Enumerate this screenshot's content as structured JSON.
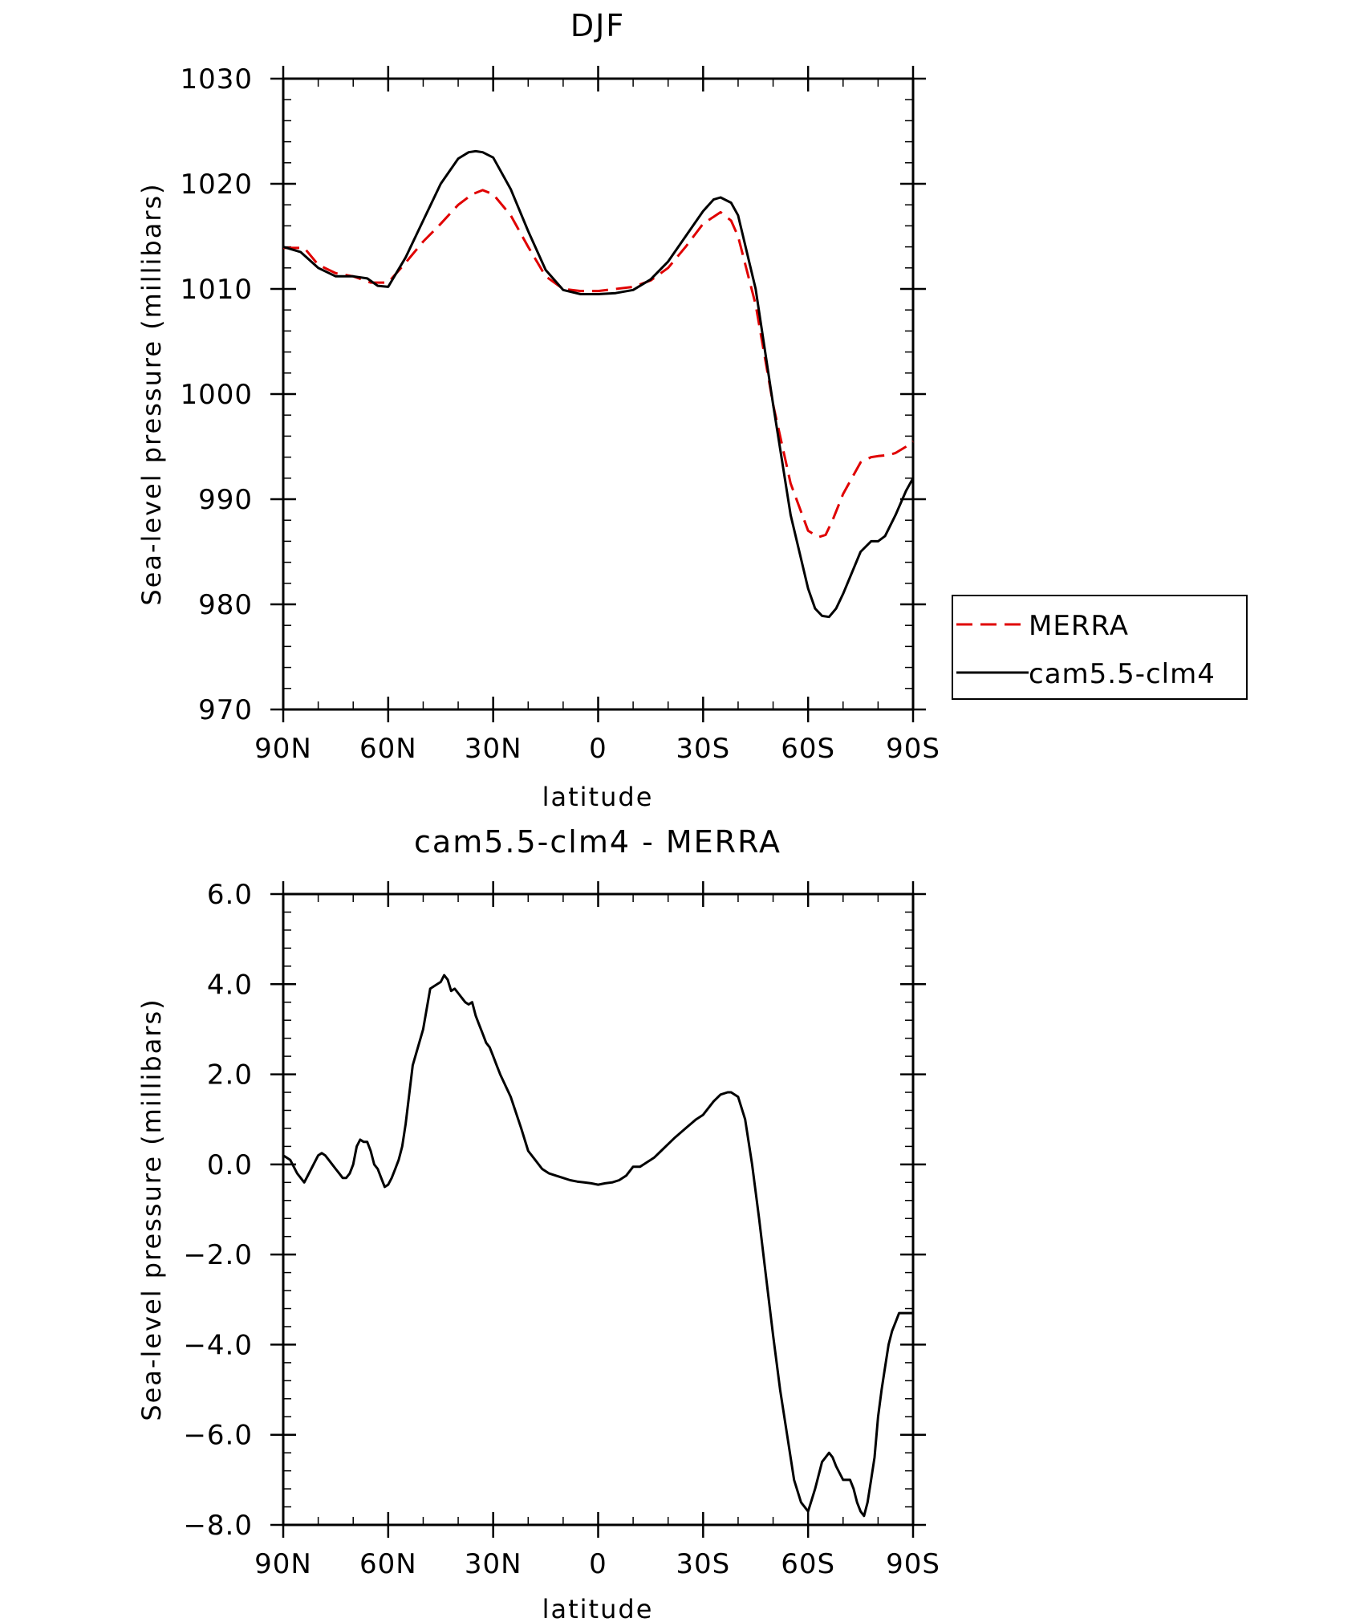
{
  "chart_data": [
    {
      "type": "line",
      "title": "DJF",
      "xlabel": "latitude",
      "ylabel": "Sea-level pressure (millibars)",
      "xlim": [
        90,
        -90
      ],
      "ylim": [
        970,
        1030
      ],
      "x_tick_values": [
        90,
        60,
        30,
        0,
        -30,
        -60,
        -90
      ],
      "x_tick_labels": [
        "90N",
        "60N",
        "30N",
        "0",
        "30S",
        "60S",
        "90S"
      ],
      "y_tick_values": [
        970,
        980,
        990,
        1000,
        1010,
        1020,
        1030
      ],
      "y_tick_labels": [
        "970",
        "980",
        "990",
        "1000",
        "1010",
        "1020",
        "1030"
      ],
      "legend_position": "right",
      "series": [
        {
          "name": "MERRA",
          "color": "#e00000",
          "dash": true,
          "x": [
            90,
            84,
            80,
            75,
            70,
            65,
            60,
            55,
            50,
            45,
            40,
            36,
            33,
            30,
            25,
            20,
            15,
            10,
            5,
            0,
            -5,
            -10,
            -15,
            -20,
            -25,
            -30,
            -35,
            -38,
            -40,
            -45,
            -50,
            -55,
            -60,
            -63,
            -65,
            -67,
            -70,
            -75,
            -78,
            -80,
            -83,
            -85,
            -88,
            -90
          ],
          "y": [
            1013.9,
            1013.9,
            1012.3,
            1011.5,
            1011.2,
            1010.6,
            1010.6,
            1012.5,
            1014.5,
            1016.2,
            1018.0,
            1019.0,
            1019.4,
            1019.0,
            1017.0,
            1014.0,
            1011.2,
            1010.0,
            1009.8,
            1009.8,
            1010.0,
            1010.2,
            1010.8,
            1012.0,
            1014.0,
            1016.2,
            1017.3,
            1016.5,
            1015.0,
            1008.5,
            999.0,
            991.5,
            987.0,
            986.4,
            986.6,
            988.0,
            990.5,
            993.5,
            994.0,
            994.1,
            994.2,
            994.4,
            995.0,
            995.5
          ]
        },
        {
          "name": "cam5.5-clm4",
          "color": "#000000",
          "dash": false,
          "x": [
            90,
            85,
            80,
            75,
            70,
            66,
            63,
            60,
            55,
            50,
            45,
            40,
            37,
            35,
            33,
            30,
            25,
            20,
            15,
            10,
            5,
            0,
            -5,
            -10,
            -15,
            -20,
            -25,
            -30,
            -33,
            -35,
            -38,
            -40,
            -45,
            -50,
            -55,
            -60,
            -62,
            -64,
            -66,
            -68,
            -70,
            -75,
            -78,
            -80,
            -82,
            -85,
            -88,
            -90
          ],
          "y": [
            1014.0,
            1013.5,
            1012.0,
            1011.2,
            1011.2,
            1011.0,
            1010.3,
            1010.2,
            1013.0,
            1016.5,
            1020.0,
            1022.4,
            1023.0,
            1023.1,
            1023.0,
            1022.5,
            1019.5,
            1015.5,
            1011.8,
            1009.9,
            1009.5,
            1009.5,
            1009.6,
            1009.9,
            1010.9,
            1012.6,
            1015.0,
            1017.4,
            1018.5,
            1018.7,
            1018.2,
            1017.0,
            1010.0,
            999.0,
            988.5,
            981.5,
            979.6,
            978.9,
            978.8,
            979.6,
            981.0,
            985.0,
            986.0,
            986.0,
            986.5,
            988.5,
            990.8,
            992.0
          ]
        }
      ]
    },
    {
      "type": "line",
      "title": "cam5.5-clm4 - MERRA",
      "xlabel": "latitude",
      "ylabel": "Sea-level pressure (millibars)",
      "xlim": [
        90,
        -90
      ],
      "ylim": [
        -8.0,
        6.0
      ],
      "x_tick_values": [
        90,
        60,
        30,
        0,
        -30,
        -60,
        -90
      ],
      "x_tick_labels": [
        "90N",
        "60N",
        "30N",
        "0",
        "30S",
        "60S",
        "90S"
      ],
      "y_tick_values": [
        -8,
        -6,
        -4,
        -2,
        0,
        2,
        4,
        6
      ],
      "y_tick_labels": [
        "-8.0",
        "-6.0",
        "-4.0",
        "-2.0",
        "0.0",
        "2.0",
        "4.0",
        "6.0"
      ],
      "series": [
        {
          "color": "#000000",
          "dash": false,
          "x": [
            90,
            88,
            86,
            84,
            82,
            80,
            79,
            78,
            77,
            76,
            75,
            74,
            73,
            72,
            71,
            70,
            69,
            68,
            67,
            66,
            65,
            64,
            63,
            62,
            61,
            60,
            59,
            58,
            57,
            56,
            55,
            53,
            50,
            48,
            46,
            45,
            44,
            43,
            42,
            41,
            40,
            39,
            38,
            37,
            36,
            35,
            34,
            33,
            32,
            31,
            30,
            29,
            28,
            25,
            22,
            20,
            18,
            16,
            14,
            12,
            10,
            8,
            6,
            4,
            2,
            0,
            -2,
            -4,
            -6,
            -8,
            -10,
            -12,
            -13,
            -14,
            -15,
            -16,
            -18,
            -20,
            -22,
            -25,
            -28,
            -30,
            -33,
            -35,
            -37,
            -38,
            -40,
            -42,
            -44,
            -46,
            -48,
            -50,
            -52,
            -54,
            -56,
            -58,
            -60,
            -62,
            -64,
            -65,
            -66,
            -67,
            -68,
            -70,
            -72,
            -73,
            -74,
            -75,
            -76,
            -77,
            -78,
            -79,
            -80,
            -81,
            -82,
            -83,
            -84,
            -85,
            -86,
            -87,
            -88,
            -89,
            -90
          ],
          "y": [
            0.2,
            0.1,
            -0.2,
            -0.4,
            -0.1,
            0.2,
            0.25,
            0.2,
            0.1,
            0.0,
            -0.1,
            -0.2,
            -0.3,
            -0.3,
            -0.2,
            0.0,
            0.4,
            0.55,
            0.5,
            0.5,
            0.3,
            0.0,
            -0.1,
            -0.3,
            -0.5,
            -0.45,
            -0.3,
            -0.1,
            0.1,
            0.4,
            0.9,
            2.2,
            3.0,
            3.9,
            4.0,
            4.05,
            4.2,
            4.1,
            3.85,
            3.9,
            3.8,
            3.7,
            3.6,
            3.55,
            3.6,
            3.3,
            3.1,
            2.9,
            2.7,
            2.6,
            2.4,
            2.2,
            2.0,
            1.5,
            0.8,
            0.3,
            0.1,
            -0.1,
            -0.2,
            -0.25,
            -0.3,
            -0.35,
            -0.38,
            -0.4,
            -0.42,
            -0.45,
            -0.42,
            -0.4,
            -0.35,
            -0.25,
            -0.05,
            -0.05,
            0.0,
            0.05,
            0.1,
            0.15,
            0.3,
            0.45,
            0.6,
            0.8,
            1.0,
            1.1,
            1.4,
            1.55,
            1.6,
            1.6,
            1.5,
            1.0,
            0.0,
            -1.2,
            -2.5,
            -3.8,
            -5.0,
            -6.0,
            -7.0,
            -7.5,
            -7.7,
            -7.2,
            -6.6,
            -6.5,
            -6.4,
            -6.5,
            -6.7,
            -7.0,
            -7.0,
            -7.2,
            -7.5,
            -7.7,
            -7.8,
            -7.5,
            -7.0,
            -6.5,
            -5.6,
            -5.0,
            -4.5,
            -4.0,
            -3.7,
            -3.5,
            -3.3,
            -3.3,
            -3.3,
            -3.3,
            -3.3
          ]
        }
      ]
    }
  ]
}
